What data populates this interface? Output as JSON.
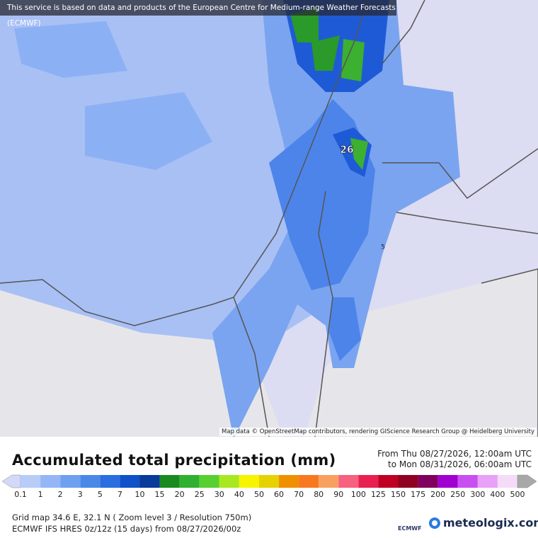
{
  "banner": "This service is based on data and products of the European Centre for Medium-range Weather Forecasts (ECMWF)",
  "map": {
    "labels": [
      "26",
      "5"
    ],
    "attribution": "Map data © OpenStreetMap contributors, rendering GIScience Research Group @ Heidelberg University"
  },
  "title": "Accumulated total precipitation (mm)",
  "time_range": {
    "from": "From Thu 08/27/2026, 12:00am UTC",
    "to": "to Mon 08/31/2026, 06:00am UTC"
  },
  "legend": {
    "labels": [
      "0.1",
      "1",
      "2",
      "3",
      "5",
      "7",
      "10",
      "15",
      "20",
      "25",
      "30",
      "40",
      "50",
      "60",
      "70",
      "80",
      "90",
      "100",
      "125",
      "150",
      "175",
      "200",
      "250",
      "300",
      "400",
      "500"
    ],
    "colors": [
      "#d4d8f8",
      "#b8ccf8",
      "#94b6f6",
      "#6ea0f0",
      "#4a88e8",
      "#2a6ee0",
      "#1050c8",
      "#0a3a9a",
      "#1a8a20",
      "#30b030",
      "#58d030",
      "#a8e820",
      "#f8f400",
      "#e6d200",
      "#f09000",
      "#f87820",
      "#f8a060",
      "#f86080",
      "#e82050",
      "#c00020",
      "#900020",
      "#800060",
      "#a000d0",
      "#c850f0",
      "#e8a0f8",
      "#f4dcf8",
      "#e0e0e0"
    ]
  },
  "footer": {
    "grid": "Grid map 34.6 E, 32.1 N ( Zoom level 3 / Resolution 750m)",
    "model": "ECMWF IFS HRES 0z/12z (15 days) from  08/27/2026/00z"
  },
  "logos": {
    "ecmwf": "ECMWF",
    "meteologix": "meteologix.com"
  }
}
